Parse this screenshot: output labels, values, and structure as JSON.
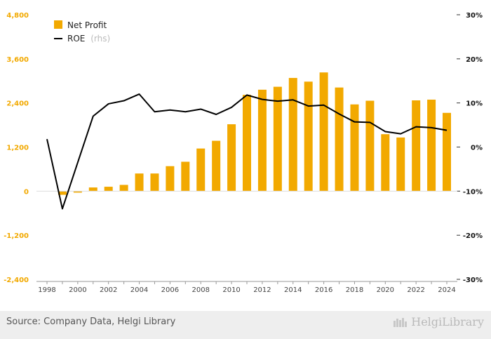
{
  "chart_data": {
    "type": "bar+line",
    "x": [
      1998,
      1999,
      2000,
      2001,
      2002,
      2003,
      2004,
      2005,
      2006,
      2007,
      2008,
      2009,
      2010,
      2011,
      2012,
      2013,
      2014,
      2015,
      2016,
      2017,
      2018,
      2019,
      2020,
      2021,
      2022,
      2023,
      2024
    ],
    "x_ticks": [
      "1998",
      "2000",
      "2002",
      "2004",
      "2006",
      "2008",
      "2010",
      "2012",
      "2014",
      "2016",
      "2018",
      "2020",
      "2022",
      "2024"
    ],
    "series": [
      {
        "name": "Net Profit",
        "kind": "bar",
        "axis": "left",
        "color": "#f2a900",
        "values": [
          null,
          -100,
          -40,
          100,
          120,
          170,
          480,
          480,
          680,
          800,
          1160,
          1370,
          1820,
          2620,
          2760,
          2840,
          3080,
          2980,
          3230,
          2820,
          2360,
          2460,
          1550,
          1460,
          2470,
          2490,
          2130
        ]
      },
      {
        "name": "ROE",
        "name_suffix": "(rhs)",
        "kind": "line",
        "axis": "right",
        "color": "#000000",
        "values": [
          1.8,
          -14.0,
          -3.5,
          7.0,
          9.8,
          10.5,
          12.0,
          8.0,
          8.4,
          8.0,
          8.6,
          7.4,
          9.0,
          11.8,
          10.8,
          10.4,
          10.7,
          9.3,
          9.5,
          7.5,
          5.7,
          5.6,
          3.5,
          3.0,
          4.6,
          4.4,
          3.8
        ]
      }
    ],
    "y_left": {
      "ticks": [
        "4,800",
        "3,600",
        "2,400",
        "1,200",
        "0",
        "-1,200",
        "-2,400"
      ],
      "range": [
        -2400,
        4800
      ]
    },
    "y_right": {
      "ticks": [
        "30%",
        "20%",
        "10%",
        "0%",
        "-10%",
        "-20%",
        "-30%"
      ],
      "range": [
        -30,
        30
      ]
    },
    "legend": {
      "position": "top-left",
      "entries": [
        "Net Profit",
        "ROE"
      ]
    },
    "grid": false
  },
  "legend": {
    "net_profit": "Net Profit",
    "roe": "ROE",
    "roe_suffix": "(rhs)"
  },
  "footer": {
    "source": "Source: Company Data, Helgi Library",
    "brand": "HelgiLibrary"
  }
}
